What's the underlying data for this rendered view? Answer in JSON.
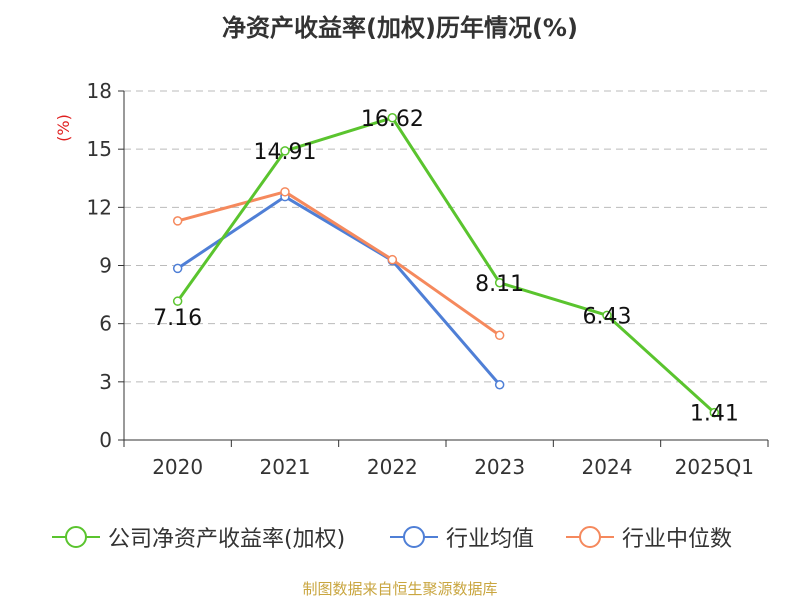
{
  "title": "净资产收益率(加权)历年情况(%)",
  "footer": "制图数据来自恒生聚源数据库",
  "colors": {
    "footer": "#c9a640",
    "ylabel": "#e02020",
    "grid": "#bbbbbb",
    "axis": "#333333"
  },
  "chart_data": {
    "type": "line",
    "title": "净资产收益率(加权)历年情况(%)",
    "ylabel": "(%)",
    "xlabel": "",
    "categories": [
      "2020",
      "2021",
      "2022",
      "2023",
      "2024",
      "2025Q1"
    ],
    "ylim": [
      0,
      18
    ],
    "yticks": [
      0,
      3,
      6,
      9,
      12,
      15,
      18
    ],
    "grid": true,
    "legend_position": "bottom",
    "series": [
      {
        "name": "公司净资产收益率(加权)",
        "color": "#5ac42e",
        "values": [
          7.16,
          14.91,
          16.62,
          8.11,
          6.43,
          1.41
        ],
        "labels": [
          "7.16",
          "14.91",
          "16.62",
          "8.11",
          "6.43",
          "1.41"
        ]
      },
      {
        "name": "行业均值",
        "color": "#4f7fd6",
        "values": [
          8.85,
          12.55,
          9.25,
          2.85,
          null,
          null
        ],
        "labels": null
      },
      {
        "name": "行业中位数",
        "color": "#f5895d",
        "values": [
          11.3,
          12.8,
          9.3,
          5.4,
          null,
          null
        ],
        "labels": null
      }
    ]
  }
}
